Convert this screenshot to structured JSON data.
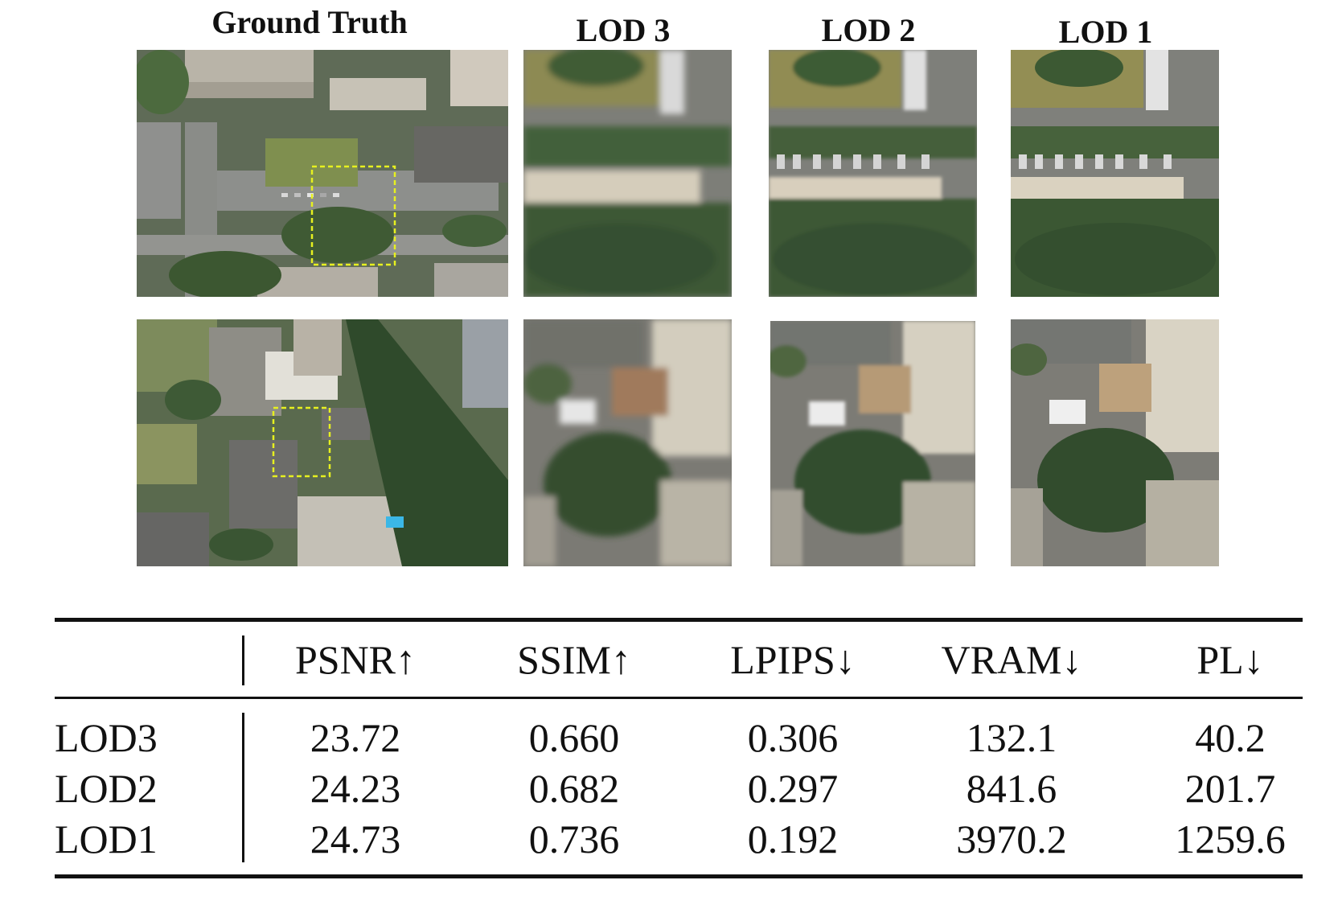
{
  "figure": {
    "column_headers": [
      "Ground Truth",
      "LOD 3",
      "LOD 2",
      "LOD 1"
    ]
  },
  "table": {
    "columns": [
      "",
      "PSNR↑",
      "SSIM↑",
      "LPIPS↓",
      "VRAM↓",
      "PL↓"
    ],
    "rows": [
      {
        "label": "LOD3",
        "values": [
          "23.72",
          "0.660",
          "0.306",
          "132.1",
          "40.2"
        ]
      },
      {
        "label": "LOD2",
        "values": [
          "24.23",
          "0.682",
          "0.297",
          "841.6",
          "201.7"
        ]
      },
      {
        "label": "LOD1",
        "values": [
          "24.73",
          "0.736",
          "0.192",
          "3970.2",
          "1259.6"
        ]
      }
    ]
  }
}
